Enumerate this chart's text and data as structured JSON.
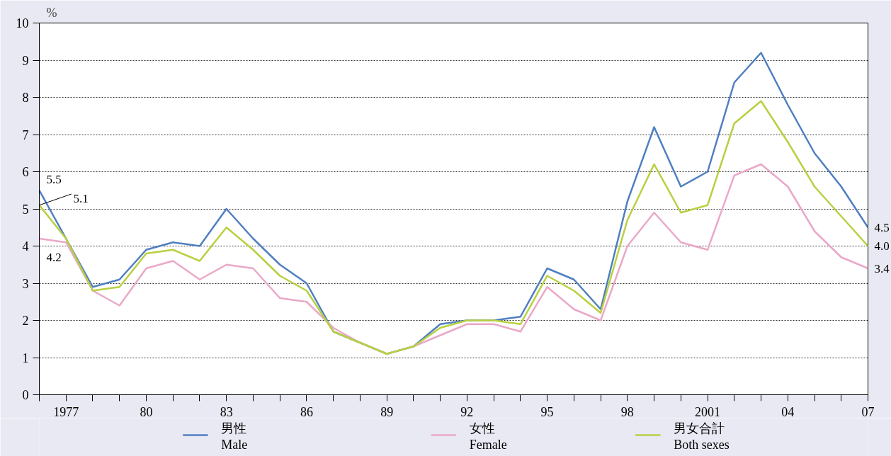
{
  "chart_data": {
    "type": "line",
    "ylabel": "%",
    "x": [
      1976,
      1977,
      1978,
      1979,
      1980,
      1981,
      1982,
      1983,
      1984,
      1985,
      1986,
      1987,
      1988,
      1989,
      1990,
      1991,
      1992,
      1993,
      1994,
      1995,
      1996,
      1997,
      1998,
      1999,
      2000,
      2001,
      2002,
      2003,
      2004,
      2005,
      2006,
      2007
    ],
    "series": [
      {
        "name": "男性\nMale",
        "color": "#4f7fc0",
        "values": [
          5.5,
          4.2,
          2.9,
          3.1,
          3.9,
          4.1,
          4.0,
          5.0,
          4.2,
          3.5,
          3.0,
          1.7,
          1.4,
          1.1,
          1.3,
          1.9,
          2.0,
          2.0,
          2.1,
          3.4,
          3.1,
          2.3,
          5.2,
          7.2,
          5.6,
          6.0,
          8.4,
          9.2,
          7.8,
          6.5,
          5.6,
          4.5
        ],
        "value_labels": [
          "5.5",
          null,
          null,
          null,
          null,
          null,
          null,
          null,
          null,
          null,
          null,
          null,
          null,
          null,
          null,
          null,
          null,
          null,
          null,
          null,
          null,
          null,
          null,
          null,
          null,
          null,
          null,
          null,
          null,
          null,
          null,
          "4.5"
        ]
      },
      {
        "name": "女性\nFemale",
        "color": "#eaa8c8",
        "values": [
          4.2,
          4.1,
          2.8,
          2.4,
          3.4,
          3.6,
          3.1,
          3.5,
          3.4,
          2.6,
          2.5,
          1.8,
          1.4,
          1.1,
          1.3,
          1.6,
          1.9,
          1.9,
          1.7,
          2.9,
          2.3,
          2.0,
          4.0,
          4.9,
          4.1,
          3.9,
          5.9,
          6.2,
          5.6,
          4.4,
          3.7,
          3.4
        ],
        "value_labels": [
          "4.2",
          null,
          null,
          null,
          null,
          null,
          null,
          null,
          null,
          null,
          null,
          null,
          null,
          null,
          null,
          null,
          null,
          null,
          null,
          null,
          null,
          null,
          null,
          null,
          null,
          null,
          null,
          null,
          null,
          null,
          null,
          "3.4"
        ]
      },
      {
        "name": "男女合計\nBoth sexes",
        "color": "#b8d040",
        "values": [
          5.1,
          4.2,
          2.8,
          2.9,
          3.8,
          3.9,
          3.6,
          4.5,
          3.9,
          3.2,
          2.8,
          1.7,
          1.4,
          1.1,
          1.3,
          1.8,
          2.0,
          2.0,
          1.9,
          3.2,
          2.8,
          2.2,
          4.7,
          6.2,
          4.9,
          5.1,
          7.3,
          7.9,
          6.8,
          5.6,
          4.8,
          4.0
        ],
        "value_labels": [
          "5.1",
          null,
          null,
          null,
          null,
          null,
          null,
          null,
          null,
          null,
          null,
          null,
          null,
          null,
          null,
          null,
          null,
          null,
          null,
          null,
          null,
          null,
          null,
          null,
          null,
          null,
          null,
          null,
          null,
          null,
          null,
          "4.0"
        ]
      }
    ],
    "xlim": [
      1976,
      2007
    ],
    "xticks": [
      {
        "value": 1976,
        "label": null
      },
      {
        "value": 1977,
        "label": "1977"
      },
      {
        "value": 1978,
        "label": null
      },
      {
        "value": 1979,
        "label": null
      },
      {
        "value": 1980,
        "label": "80"
      },
      {
        "value": 1981,
        "label": null
      },
      {
        "value": 1982,
        "label": null
      },
      {
        "value": 1983,
        "label": "83"
      },
      {
        "value": 1984,
        "label": null
      },
      {
        "value": 1985,
        "label": null
      },
      {
        "value": 1986,
        "label": "86"
      },
      {
        "value": 1987,
        "label": null
      },
      {
        "value": 1988,
        "label": null
      },
      {
        "value": 1989,
        "label": "89"
      },
      {
        "value": 1990,
        "label": null
      },
      {
        "value": 1991,
        "label": null
      },
      {
        "value": 1992,
        "label": "92"
      },
      {
        "value": 1993,
        "label": null
      },
      {
        "value": 1994,
        "label": null
      },
      {
        "value": 1995,
        "label": "95"
      },
      {
        "value": 1996,
        "label": null
      },
      {
        "value": 1997,
        "label": null
      },
      {
        "value": 1998,
        "label": "98"
      },
      {
        "value": 1999,
        "label": null
      },
      {
        "value": 2000,
        "label": null
      },
      {
        "value": 2001,
        "label": "2001"
      },
      {
        "value": 2002,
        "label": null
      },
      {
        "value": 2003,
        "label": null
      },
      {
        "value": 2004,
        "label": "04"
      },
      {
        "value": 2005,
        "label": null
      },
      {
        "value": 2006,
        "label": null
      },
      {
        "value": 2007,
        "label": "07"
      }
    ],
    "ylim": [
      0,
      10
    ],
    "yticks": [
      0,
      1,
      2,
      3,
      4,
      5,
      6,
      7,
      8,
      9,
      10
    ],
    "grid": "y",
    "legend": "bottom",
    "line_style": "solid",
    "marker": "none"
  }
}
